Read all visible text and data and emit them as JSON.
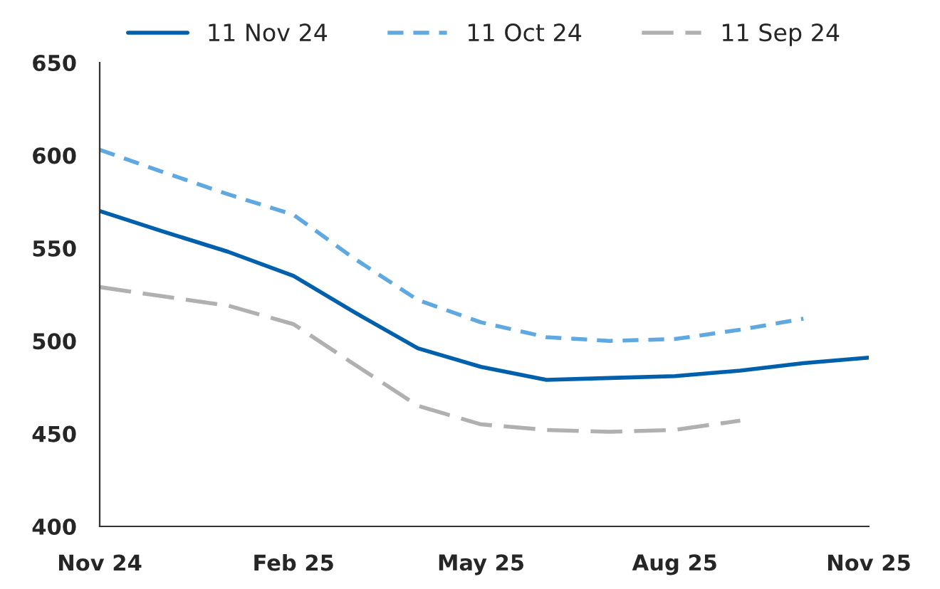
{
  "chart_data": {
    "type": "line",
    "x": [
      "2024-11",
      "2024-12",
      "2025-01",
      "2025-02",
      "2025-03",
      "2025-04",
      "2025-05",
      "2025-06",
      "2025-07",
      "2025-08",
      "2025-09",
      "2025-10",
      "2025-11"
    ],
    "series": [
      {
        "name": "11 Nov 24",
        "color": "#0060ac",
        "line_style": "solid",
        "values": [
          570,
          559,
          548,
          535,
          516,
          496,
          486,
          479,
          480,
          481,
          484,
          488,
          491
        ]
      },
      {
        "name": "11 Oct 24",
        "color": "#5fa8e0",
        "line_style": "dashed",
        "values": [
          603,
          591,
          579,
          568,
          545,
          522,
          510,
          502,
          500,
          501,
          506,
          512,
          null
        ]
      },
      {
        "name": "11 Sep 24",
        "color": "#b0b0b0",
        "line_style": "dashed",
        "values": [
          529,
          524,
          519,
          509,
          488,
          465,
          455,
          452,
          451,
          452,
          457,
          null,
          null
        ]
      }
    ],
    "xlim": [
      "2024-11",
      "2025-11"
    ],
    "xticks": [
      {
        "value": "2024-11",
        "label": "Nov 24"
      },
      {
        "value": "2025-02",
        "label": "Feb 25"
      },
      {
        "value": "2025-05",
        "label": "May 25"
      },
      {
        "value": "2025-08",
        "label": "Aug 25"
      },
      {
        "value": "2025-11",
        "label": "Nov 25"
      }
    ],
    "ylim": [
      400,
      650
    ],
    "yticks": [
      400,
      450,
      500,
      550,
      600,
      650
    ],
    "legend": "top",
    "grid": false,
    "marker": "none"
  }
}
